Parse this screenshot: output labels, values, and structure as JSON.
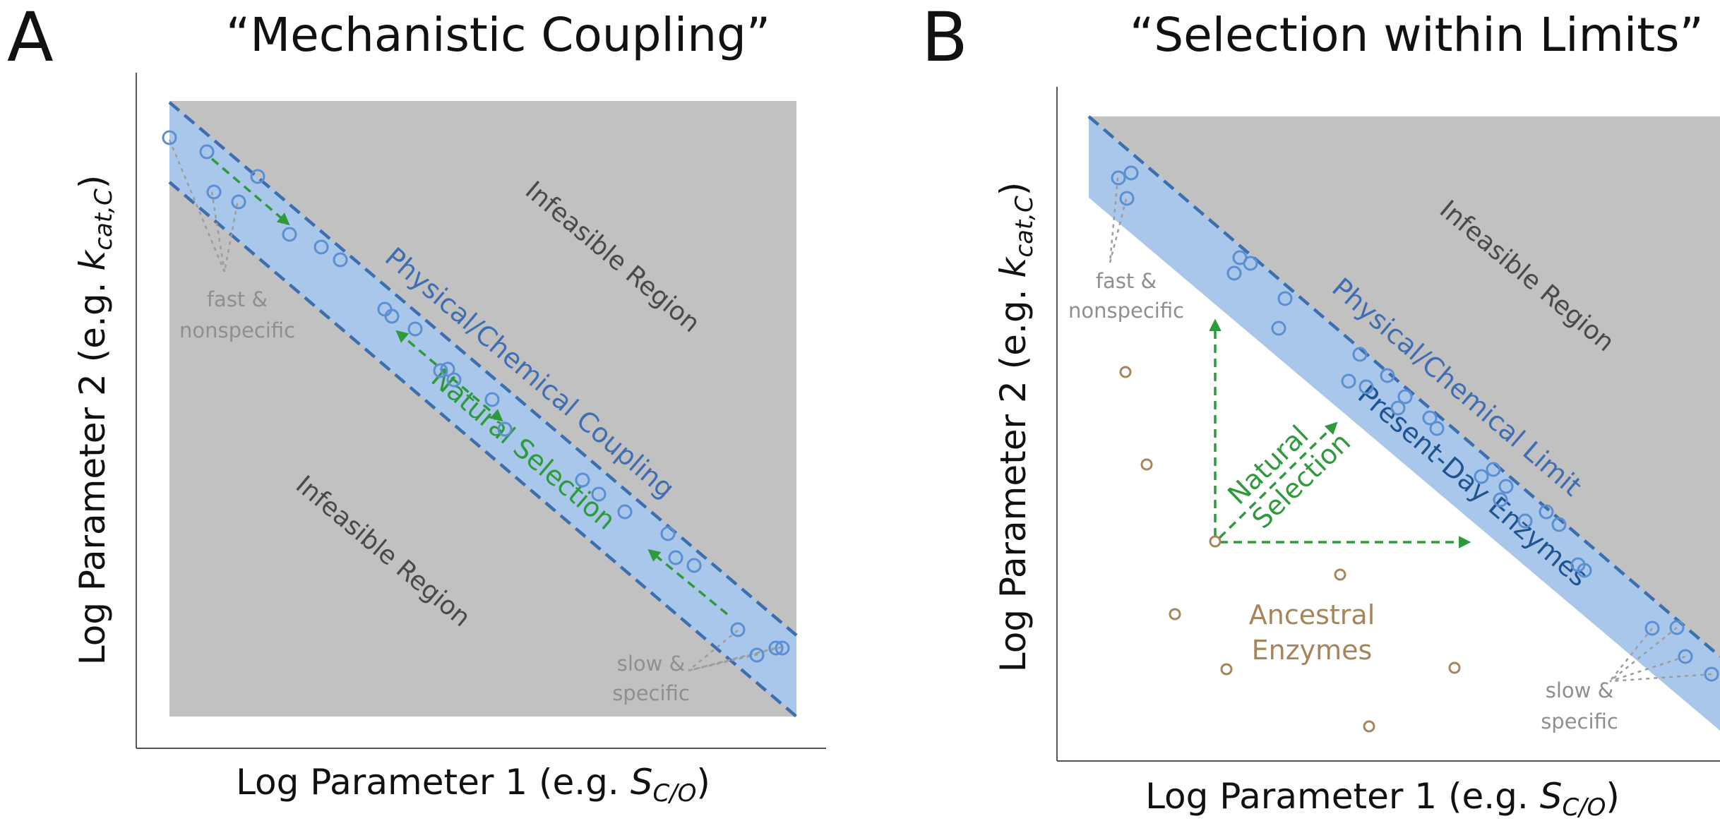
{
  "panel_a": {
    "letter": "A",
    "title": "“Mechanistic Coupling”",
    "y_label": "Log Parameter 2 (e.g. ",
    "y_var": "k",
    "y_sub": "cat,C",
    "y_close": ")",
    "x_label": "Log Parameter 1 (e.g. ",
    "x_var": "S",
    "x_sub": "C/O",
    "x_close": ")",
    "infeasible_upper": "Infeasible Region",
    "infeasible_lower": "Infeasible Region",
    "band_label": "Physical/Chemical Coupling",
    "selection_label": "Natural Selection",
    "fast_line1": "fast &",
    "fast_line2": "nonspecific",
    "slow_line1": "slow &",
    "slow_line2": "specific"
  },
  "panel_b": {
    "letter": "B",
    "title": "“Selection within Limits”",
    "y_label": "Log Parameter 2 (e.g. ",
    "y_var": "k",
    "y_sub": "cat,C",
    "y_close": ")",
    "x_label": "Log Parameter 1 (e.g. ",
    "x_var": "S",
    "x_sub": "C/O",
    "x_close": ")",
    "infeasible_label": "Infeasible Region",
    "limit_label": "Physical/Chemical Limit",
    "present_label": "Present-Day Enzymes",
    "selection_line1": "Natural",
    "selection_line2": "Selection",
    "ancestral_line1": "Ancestral",
    "ancestral_line2": "Enzymes",
    "fast_line1": "fast &",
    "fast_line2": "nonspecific",
    "slow_line1": "slow &",
    "slow_line2": "specific"
  },
  "colors": {
    "infeasible_gray": "#c1c1c1",
    "band_blue": "#a9c7ea",
    "band_edge": "#3d6fae",
    "enzyme_circle": "#5b8fd1",
    "selection_green": "#2f9a3c",
    "ancestral_brown": "#a7855a",
    "note_gray": "#8f8f8f"
  }
}
